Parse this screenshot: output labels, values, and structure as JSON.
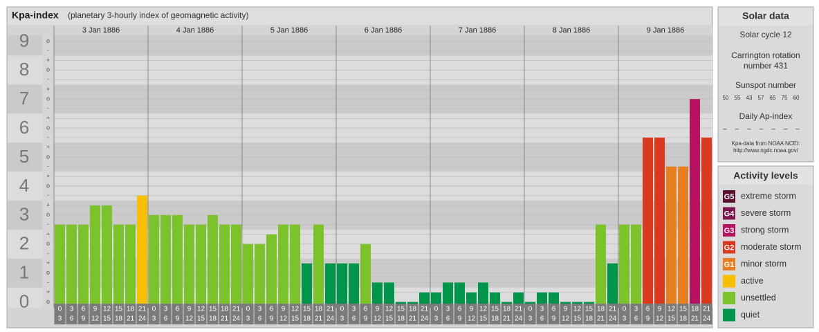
{
  "chart_data": {
    "type": "bar",
    "title": "Kpa-index",
    "subtitle": "(planetary 3-hourly index of geomagnetic activity)",
    "days": [
      "3 Jan 1886",
      "4 Jan 1886",
      "5 Jan 1886",
      "6 Jan 1886",
      "7 Jan 1886",
      "8 Jan 1886",
      "9 Jan 1886"
    ],
    "hour_labels": [
      [
        "0",
        "3"
      ],
      [
        "3",
        "6"
      ],
      [
        "6",
        "9"
      ],
      [
        "9",
        "12"
      ],
      [
        "12",
        "15"
      ],
      [
        "15",
        "18"
      ],
      [
        "18",
        "21"
      ],
      [
        "21",
        "24"
      ]
    ],
    "values": [
      2.67,
      2.67,
      2.67,
      3.33,
      3.33,
      2.67,
      2.67,
      3.67,
      3,
      3,
      3,
      2.67,
      2.67,
      3,
      2.67,
      2.67,
      2,
      2,
      2.33,
      2.67,
      2.67,
      1.33,
      2.67,
      1.33,
      1.33,
      1.33,
      2,
      0.67,
      0.67,
      0,
      0,
      0.33,
      0.33,
      0.67,
      0.67,
      0.33,
      0.67,
      0.33,
      0,
      0.33,
      0,
      0.33,
      0.33,
      0,
      0,
      0,
      2.67,
      1.33,
      2.67,
      2.67,
      5.67,
      5.67,
      4.67,
      4.67,
      7,
      5.67
    ],
    "colors": [
      "#7cc22b",
      "#7cc22b",
      "#7cc22b",
      "#7cc22b",
      "#7cc22b",
      "#7cc22b",
      "#7cc22b",
      "#f7bf00",
      "#7cc22b",
      "#7cc22b",
      "#7cc22b",
      "#7cc22b",
      "#7cc22b",
      "#7cc22b",
      "#7cc22b",
      "#7cc22b",
      "#7cc22b",
      "#7cc22b",
      "#7cc22b",
      "#7cc22b",
      "#7cc22b",
      "#00954a",
      "#7cc22b",
      "#00954a",
      "#00954a",
      "#00954a",
      "#7cc22b",
      "#00954a",
      "#00954a",
      "#00954a",
      "#00954a",
      "#00954a",
      "#00954a",
      "#00954a",
      "#00954a",
      "#00954a",
      "#00954a",
      "#00954a",
      "#00954a",
      "#00954a",
      "#00954a",
      "#00954a",
      "#00954a",
      "#00954a",
      "#00954a",
      "#00954a",
      "#7cc22b",
      "#00954a",
      "#7cc22b",
      "#7cc22b",
      "#d93a1e",
      "#d93a1e",
      "#e67e22",
      "#e67e22",
      "#b5135f",
      "#d93a1e"
    ],
    "ylim": [
      -0.2,
      9.2
    ],
    "yticks": [
      0,
      1,
      2,
      3,
      4,
      5,
      6,
      7,
      8,
      9
    ],
    "minor_ticks": [
      {
        "value": 0,
        "label": "o"
      },
      {
        "value": 0.33,
        "label": "+"
      },
      {
        "value": 0.67,
        "label": "-"
      },
      {
        "value": 1,
        "label": "o"
      },
      {
        "value": 1.33,
        "label": "+"
      },
      {
        "value": 1.67,
        "label": "-"
      },
      {
        "value": 2,
        "label": "o"
      },
      {
        "value": 2.33,
        "label": "+"
      },
      {
        "value": 2.67,
        "label": "-"
      },
      {
        "value": 3,
        "label": "o"
      },
      {
        "value": 3.33,
        "label": "+"
      },
      {
        "value": 3.67,
        "label": "-"
      },
      {
        "value": 4,
        "label": "o"
      },
      {
        "value": 4.33,
        "label": "+"
      },
      {
        "value": 4.67,
        "label": "-"
      },
      {
        "value": 5,
        "label": "o"
      },
      {
        "value": 5.33,
        "label": "+"
      },
      {
        "value": 5.67,
        "label": "-"
      },
      {
        "value": 6,
        "label": "o"
      },
      {
        "value": 6.33,
        "label": "+"
      },
      {
        "value": 6.67,
        "label": "-"
      },
      {
        "value": 7,
        "label": "o"
      },
      {
        "value": 7.33,
        "label": "+"
      },
      {
        "value": 7.67,
        "label": "-"
      },
      {
        "value": 8,
        "label": "o"
      },
      {
        "value": 8.33,
        "label": "+"
      },
      {
        "value": 8.67,
        "label": "-"
      },
      {
        "value": 9,
        "label": "o"
      }
    ],
    "grid": true
  },
  "solar_data": {
    "title": "Solar data",
    "cycle": "Solar cycle 12",
    "rotation": [
      "Carrington rotation",
      "number 431"
    ],
    "sunspot_title": "Sunspot number",
    "sunspots": [
      "50",
      "55",
      "43",
      "57",
      "65",
      "75",
      "60"
    ],
    "ap_title": "Daily Ap-index",
    "ap": [
      "–",
      "–",
      "–",
      "–",
      "–",
      "–",
      "–"
    ],
    "source": [
      "Kpa-data from NOAA NCEI:",
      "http://www.ngdc.noaa.gov/"
    ]
  },
  "activity_levels": {
    "title": "Activity levels",
    "levels": [
      {
        "badge": "G5",
        "label": "extreme storm",
        "color": "#5a0f33"
      },
      {
        "badge": "G4",
        "label": "severe storm",
        "color": "#7d1650"
      },
      {
        "badge": "G3",
        "label": "strong storm",
        "color": "#b5135f"
      },
      {
        "badge": "G2",
        "label": "moderate storm",
        "color": "#d93a1e"
      },
      {
        "badge": "G1",
        "label": "minor storm",
        "color": "#e67e22"
      },
      {
        "label": "active",
        "color": "#f7bf00"
      },
      {
        "label": "unsettled",
        "color": "#7cc22b"
      },
      {
        "label": "quiet",
        "color": "#00954a"
      }
    ]
  }
}
